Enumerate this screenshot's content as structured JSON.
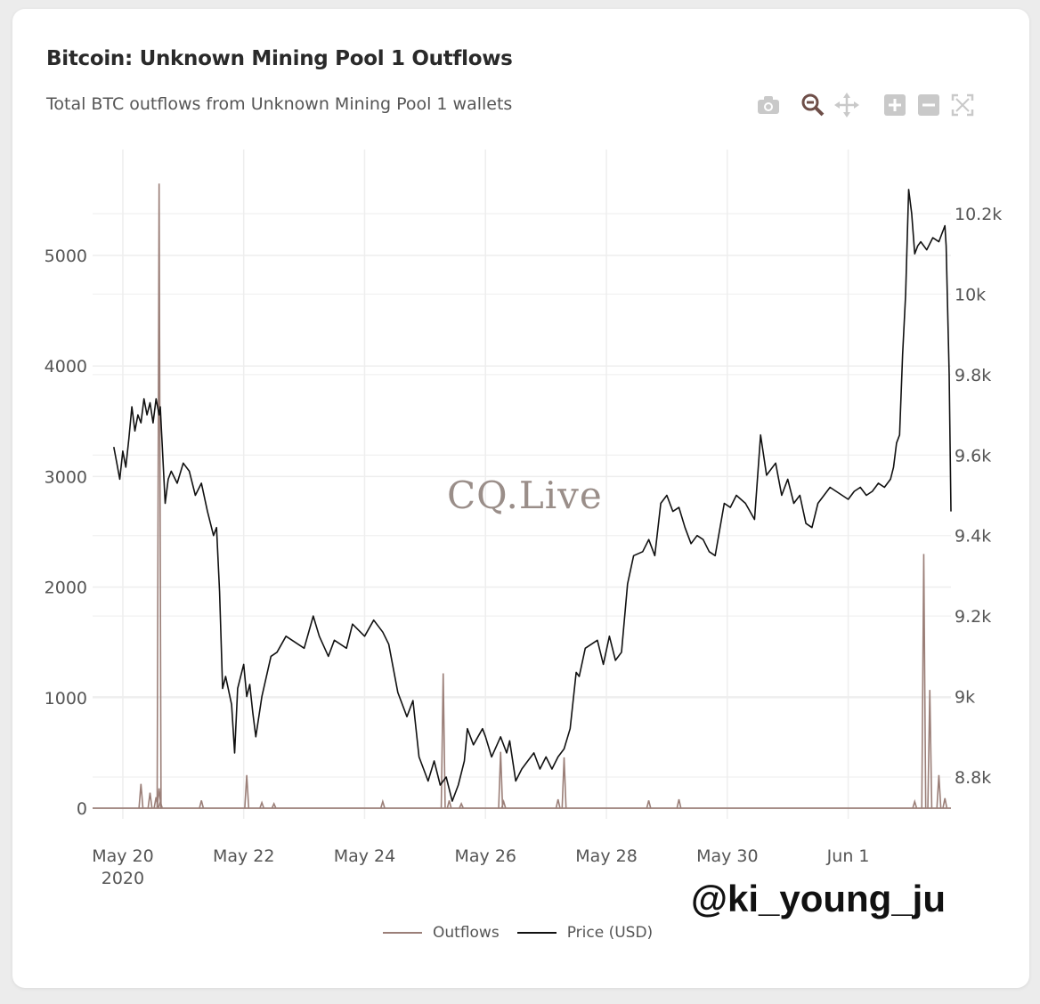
{
  "header": {
    "title": "Bitcoin: Unknown Mining Pool 1 Outflows",
    "subtitle": "Total BTC outflows from Unknown Mining Pool 1 wallets"
  },
  "toolbar": {
    "icons": [
      "camera-icon",
      "zoom-icon",
      "pan-icon",
      "zoom-in-icon",
      "zoom-out-icon",
      "autoscale-icon"
    ]
  },
  "watermark": "CQ.Live",
  "handle": "@ki_young_ju",
  "colors": {
    "outflows": "#9b7f78",
    "price": "#111111",
    "grid": "#eeeeee",
    "axis_text": "#555555"
  },
  "chart_data": {
    "type": "line",
    "x_tick_labels": [
      "May 20",
      "May 22",
      "May 24",
      "May 26",
      "May 28",
      "May 30",
      "Jun 1"
    ],
    "x_tick_sublabel": "2020",
    "y_left_ticks": [
      0,
      1000,
      2000,
      3000,
      4000,
      5000
    ],
    "y_right_tick_labels": [
      "8.8k",
      "9k",
      "9.2k",
      "9.4k",
      "9.6k",
      "9.8k",
      "10k",
      "10.2k"
    ],
    "y_right_ticks": [
      8800,
      9000,
      9200,
      9400,
      9600,
      9800,
      10000,
      10200
    ],
    "xlim_days": [
      -0.5,
      13.7
    ],
    "ylim_left": [
      -200,
      5950
    ],
    "ylim_right": [
      8720,
      10270
    ],
    "legend_position": "bottom-center",
    "series": [
      {
        "name": "Outflows",
        "axis": "left",
        "spikes": [
          {
            "day": 0.3,
            "value": 220
          },
          {
            "day": 0.45,
            "value": 140
          },
          {
            "day": 0.55,
            "value": 100
          },
          {
            "day": 0.6,
            "value": 180
          },
          {
            "day": 0.6,
            "value": 5650
          },
          {
            "day": 0.62,
            "value": 60
          },
          {
            "day": 1.3,
            "value": 70
          },
          {
            "day": 2.05,
            "value": 300
          },
          {
            "day": 2.3,
            "value": 50
          },
          {
            "day": 2.5,
            "value": 40
          },
          {
            "day": 4.3,
            "value": 60
          },
          {
            "day": 5.3,
            "value": 1220
          },
          {
            "day": 5.4,
            "value": 70
          },
          {
            "day": 5.6,
            "value": 40
          },
          {
            "day": 6.25,
            "value": 510
          },
          {
            "day": 6.3,
            "value": 60
          },
          {
            "day": 7.2,
            "value": 80
          },
          {
            "day": 7.3,
            "value": 460
          },
          {
            "day": 8.7,
            "value": 70
          },
          {
            "day": 9.2,
            "value": 80
          },
          {
            "day": 13.1,
            "value": 60
          },
          {
            "day": 13.25,
            "value": 2300
          },
          {
            "day": 13.35,
            "value": 1070
          },
          {
            "day": 13.5,
            "value": 300
          },
          {
            "day": 13.6,
            "value": 90
          }
        ]
      },
      {
        "name": "Price (USD)",
        "axis": "right",
        "points": [
          [
            -0.15,
            9620
          ],
          [
            -0.1,
            9580
          ],
          [
            -0.05,
            9540
          ],
          [
            0.0,
            9610
          ],
          [
            0.05,
            9570
          ],
          [
            0.1,
            9640
          ],
          [
            0.15,
            9720
          ],
          [
            0.2,
            9660
          ],
          [
            0.25,
            9700
          ],
          [
            0.3,
            9680
          ],
          [
            0.35,
            9740
          ],
          [
            0.4,
            9700
          ],
          [
            0.45,
            9730
          ],
          [
            0.5,
            9680
          ],
          [
            0.55,
            9740
          ],
          [
            0.6,
            9700
          ],
          [
            0.62,
            9720
          ],
          [
            0.7,
            9480
          ],
          [
            0.75,
            9540
          ],
          [
            0.8,
            9560
          ],
          [
            0.9,
            9530
          ],
          [
            1.0,
            9580
          ],
          [
            1.1,
            9560
          ],
          [
            1.2,
            9500
          ],
          [
            1.3,
            9530
          ],
          [
            1.4,
            9460
          ],
          [
            1.5,
            9400
          ],
          [
            1.55,
            9420
          ],
          [
            1.6,
            9260
          ],
          [
            1.65,
            9020
          ],
          [
            1.7,
            9050
          ],
          [
            1.8,
            8980
          ],
          [
            1.85,
            8860
          ],
          [
            1.9,
            9020
          ],
          [
            2.0,
            9080
          ],
          [
            2.05,
            9000
          ],
          [
            2.1,
            9030
          ],
          [
            2.15,
            8960
          ],
          [
            2.2,
            8900
          ],
          [
            2.3,
            9000
          ],
          [
            2.45,
            9100
          ],
          [
            2.55,
            9110
          ],
          [
            2.7,
            9150
          ],
          [
            2.8,
            9140
          ],
          [
            3.0,
            9120
          ],
          [
            3.15,
            9200
          ],
          [
            3.25,
            9150
          ],
          [
            3.4,
            9100
          ],
          [
            3.5,
            9140
          ],
          [
            3.7,
            9120
          ],
          [
            3.8,
            9180
          ],
          [
            4.0,
            9150
          ],
          [
            4.15,
            9190
          ],
          [
            4.3,
            9160
          ],
          [
            4.4,
            9130
          ],
          [
            4.55,
            9010
          ],
          [
            4.7,
            8950
          ],
          [
            4.8,
            8990
          ],
          [
            4.9,
            8850
          ],
          [
            5.05,
            8790
          ],
          [
            5.15,
            8840
          ],
          [
            5.25,
            8780
          ],
          [
            5.35,
            8800
          ],
          [
            5.45,
            8740
          ],
          [
            5.55,
            8780
          ],
          [
            5.65,
            8840
          ],
          [
            5.7,
            8920
          ],
          [
            5.8,
            8880
          ],
          [
            5.95,
            8920
          ],
          [
            6.0,
            8900
          ],
          [
            6.1,
            8850
          ],
          [
            6.25,
            8900
          ],
          [
            6.35,
            8860
          ],
          [
            6.4,
            8890
          ],
          [
            6.5,
            8790
          ],
          [
            6.6,
            8820
          ],
          [
            6.7,
            8840
          ],
          [
            6.8,
            8860
          ],
          [
            6.9,
            8820
          ],
          [
            7.0,
            8850
          ],
          [
            7.1,
            8820
          ],
          [
            7.2,
            8850
          ],
          [
            7.3,
            8870
          ],
          [
            7.4,
            8920
          ],
          [
            7.5,
            9060
          ],
          [
            7.55,
            9050
          ],
          [
            7.65,
            9120
          ],
          [
            7.75,
            9130
          ],
          [
            7.85,
            9140
          ],
          [
            7.95,
            9080
          ],
          [
            8.05,
            9150
          ],
          [
            8.15,
            9090
          ],
          [
            8.25,
            9110
          ],
          [
            8.35,
            9280
          ],
          [
            8.45,
            9350
          ],
          [
            8.6,
            9360
          ],
          [
            8.7,
            9390
          ],
          [
            8.8,
            9350
          ],
          [
            8.9,
            9480
          ],
          [
            9.0,
            9500
          ],
          [
            9.1,
            9460
          ],
          [
            9.2,
            9470
          ],
          [
            9.3,
            9420
          ],
          [
            9.4,
            9380
          ],
          [
            9.5,
            9400
          ],
          [
            9.6,
            9390
          ],
          [
            9.7,
            9360
          ],
          [
            9.8,
            9350
          ],
          [
            9.95,
            9480
          ],
          [
            10.05,
            9470
          ],
          [
            10.15,
            9500
          ],
          [
            10.3,
            9480
          ],
          [
            10.45,
            9440
          ],
          [
            10.55,
            9650
          ],
          [
            10.65,
            9550
          ],
          [
            10.8,
            9580
          ],
          [
            10.9,
            9500
          ],
          [
            11.0,
            9540
          ],
          [
            11.1,
            9480
          ],
          [
            11.2,
            9500
          ],
          [
            11.3,
            9430
          ],
          [
            11.4,
            9420
          ],
          [
            11.5,
            9480
          ],
          [
            11.6,
            9500
          ],
          [
            11.7,
            9520
          ],
          [
            11.8,
            9510
          ],
          [
            11.9,
            9500
          ],
          [
            12.0,
            9490
          ],
          [
            12.1,
            9510
          ],
          [
            12.2,
            9520
          ],
          [
            12.3,
            9500
          ],
          [
            12.4,
            9510
          ],
          [
            12.5,
            9530
          ],
          [
            12.6,
            9520
          ],
          [
            12.7,
            9540
          ],
          [
            12.75,
            9570
          ],
          [
            12.8,
            9630
          ],
          [
            12.85,
            9650
          ],
          [
            12.9,
            9850
          ],
          [
            12.95,
            10000
          ],
          [
            13.0,
            10260
          ],
          [
            13.05,
            10200
          ],
          [
            13.1,
            10100
          ],
          [
            13.15,
            10120
          ],
          [
            13.2,
            10130
          ],
          [
            13.3,
            10110
          ],
          [
            13.4,
            10140
          ],
          [
            13.5,
            10130
          ],
          [
            13.55,
            10150
          ],
          [
            13.6,
            10170
          ],
          [
            13.62,
            10120
          ],
          [
            13.67,
            9800
          ],
          [
            13.7,
            9460
          ]
        ]
      }
    ]
  }
}
